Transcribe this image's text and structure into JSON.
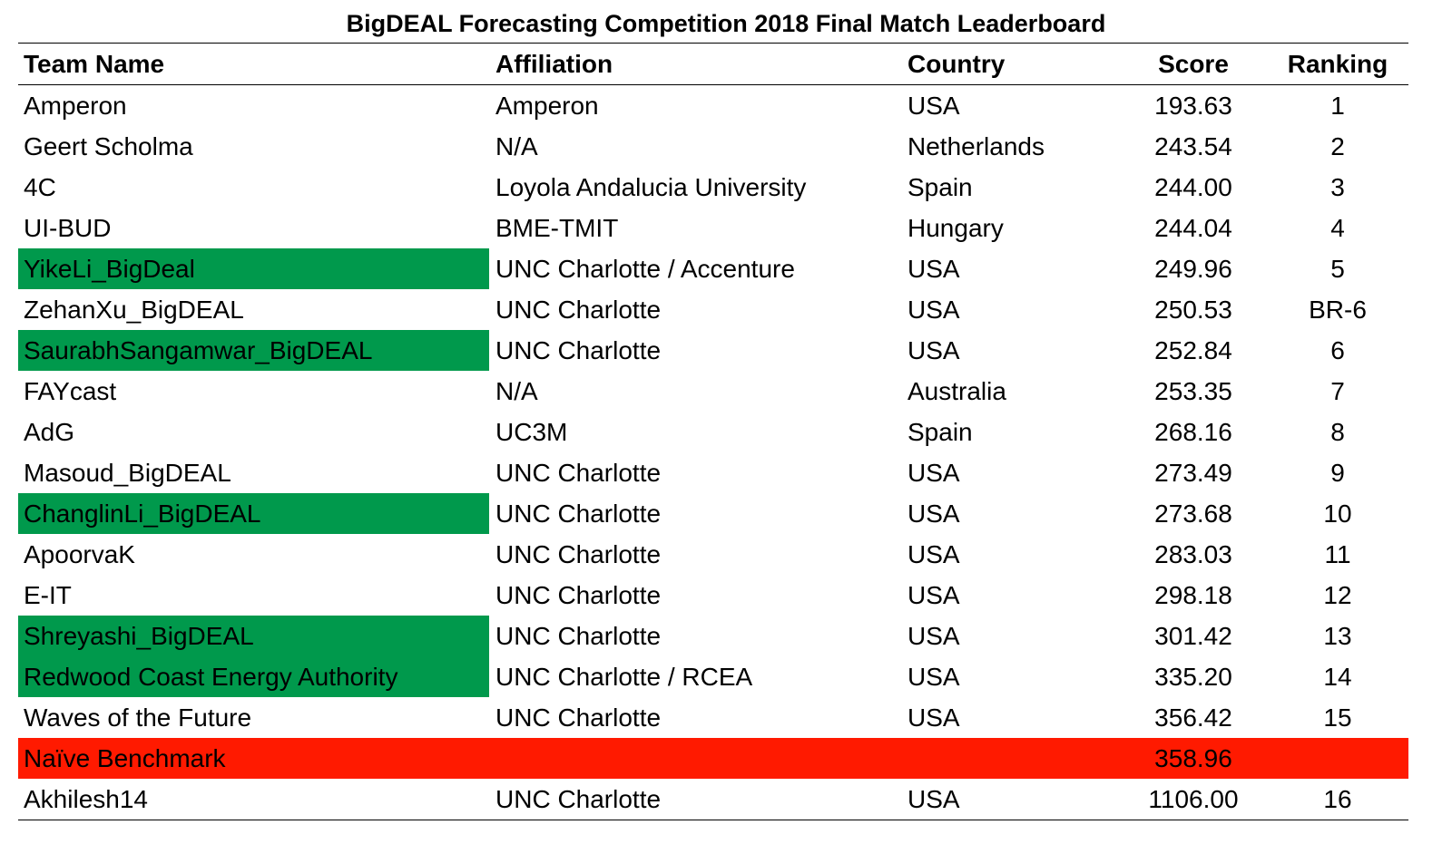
{
  "title": "BigDEAL Forecasting Competition 2018 Final Match Leaderboard",
  "colors": {
    "green_highlight": "#00994c",
    "red_highlight": "#ff1a00"
  },
  "headers": {
    "team": "Team Name",
    "affiliation": "Affiliation",
    "country": "Country",
    "score": "Score",
    "ranking": "Ranking"
  },
  "rows": [
    {
      "team": "Amperon",
      "affiliation": "Amperon",
      "country": "USA",
      "score": "193.63",
      "ranking": "1",
      "highlight": "none"
    },
    {
      "team": "Geert Scholma",
      "affiliation": "N/A",
      "country": "Netherlands",
      "score": "243.54",
      "ranking": "2",
      "highlight": "none"
    },
    {
      "team": "4C",
      "affiliation": "Loyola Andalucia University",
      "country": "Spain",
      "score": "244.00",
      "ranking": "3",
      "highlight": "none"
    },
    {
      "team": "UI-BUD",
      "affiliation": "BME-TMIT",
      "country": "Hungary",
      "score": "244.04",
      "ranking": "4",
      "highlight": "none"
    },
    {
      "team": "YikeLi_BigDeal",
      "affiliation": "UNC Charlotte / Accenture",
      "country": "USA",
      "score": "249.96",
      "ranking": "5",
      "highlight": "green"
    },
    {
      "team": "ZehanXu_BigDEAL",
      "affiliation": "UNC Charlotte",
      "country": "USA",
      "score": "250.53",
      "ranking": "BR-6",
      "highlight": "none"
    },
    {
      "team": "SaurabhSangamwar_BigDEAL",
      "affiliation": "UNC Charlotte",
      "country": "USA",
      "score": "252.84",
      "ranking": "6",
      "highlight": "green"
    },
    {
      "team": "FAYcast",
      "affiliation": "N/A",
      "country": "Australia",
      "score": "253.35",
      "ranking": "7",
      "highlight": "none"
    },
    {
      "team": "AdG",
      "affiliation": "UC3M",
      "country": "Spain",
      "score": "268.16",
      "ranking": "8",
      "highlight": "none"
    },
    {
      "team": "Masoud_BigDEAL",
      "affiliation": "UNC Charlotte",
      "country": "USA",
      "score": "273.49",
      "ranking": "9",
      "highlight": "none"
    },
    {
      "team": "ChanglinLi_BigDEAL",
      "affiliation": "UNC Charlotte",
      "country": "USA",
      "score": "273.68",
      "ranking": "10",
      "highlight": "green"
    },
    {
      "team": "ApoorvaK",
      "affiliation": "UNC Charlotte",
      "country": "USA",
      "score": "283.03",
      "ranking": "11",
      "highlight": "none"
    },
    {
      "team": "E-IT",
      "affiliation": "UNC Charlotte",
      "country": "USA",
      "score": "298.18",
      "ranking": "12",
      "highlight": "none"
    },
    {
      "team": "Shreyashi_BigDEAL",
      "affiliation": "UNC Charlotte",
      "country": "USA",
      "score": "301.42",
      "ranking": "13",
      "highlight": "green"
    },
    {
      "team": "Redwood Coast Energy Authority",
      "affiliation": "UNC Charlotte / RCEA",
      "country": "USA",
      "score": "335.20",
      "ranking": "14",
      "highlight": "green"
    },
    {
      "team": "Waves of the Future",
      "affiliation": "UNC Charlotte",
      "country": "USA",
      "score": "356.42",
      "ranking": "15",
      "highlight": "none"
    },
    {
      "team": "Naïve Benchmark",
      "affiliation": "",
      "country": "",
      "score": "358.96",
      "ranking": "",
      "highlight": "red"
    },
    {
      "team": "Akhilesh14",
      "affiliation": "UNC Charlotte",
      "country": "USA",
      "score": "1106.00",
      "ranking": "16",
      "highlight": "none"
    }
  ]
}
